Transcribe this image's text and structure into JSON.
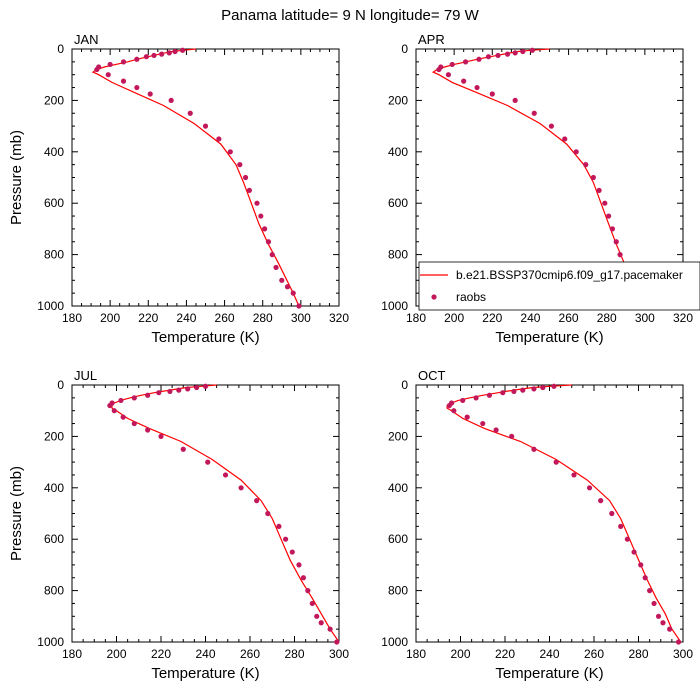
{
  "figure_title": "Panama  latitude= 9 N longitude= 79 W",
  "legend": {
    "model_label": "b.e21.BSSP370cmip6.f09_g17.pacemaker",
    "obs_label": "raobs",
    "placement": "right-middle, overlapping APR panel",
    "model_color": "#ff0000",
    "obs_color": "#c2185b"
  },
  "chart_data": [
    {
      "type": "line",
      "panel": "JAN",
      "title": "JAN",
      "xlabel": "Temperature (K)",
      "ylabel": "Pressure (mb)",
      "xlim": [
        180,
        320
      ],
      "ylim": [
        1000,
        0
      ],
      "xticks": [
        180,
        200,
        220,
        240,
        260,
        280,
        300,
        320
      ],
      "yticks": [
        0,
        200,
        400,
        600,
        800,
        1000
      ],
      "series": [
        {
          "name": "b.e21.BSSP370cmip6.f09_g17.pacemaker",
          "style": "line",
          "x": [
            245,
            238,
            232,
            226,
            220,
            214,
            209,
            203,
            197,
            193,
            191,
            194,
            201,
            213,
            228,
            244,
            258,
            266,
            270,
            274,
            278,
            283,
            288,
            292,
            296,
            299
          ],
          "y": [
            0,
            5,
            10,
            20,
            30,
            40,
            50,
            60,
            70,
            80,
            90,
            100,
            130,
            170,
            220,
            290,
            370,
            450,
            520,
            600,
            680,
            760,
            830,
            890,
            950,
            1000
          ]
        },
        {
          "name": "raobs",
          "style": "marker",
          "x": [
            238,
            234,
            231,
            227,
            223,
            219,
            214,
            207,
            200,
            194,
            193,
            199,
            207,
            214,
            221,
            232,
            242,
            250,
            257,
            263,
            268,
            271,
            273,
            277,
            279,
            281,
            283,
            285,
            287,
            290,
            293,
            296,
            299
          ],
          "y": [
            5,
            10,
            15,
            20,
            25,
            30,
            40,
            50,
            60,
            70,
            80,
            100,
            125,
            150,
            175,
            200,
            250,
            300,
            350,
            400,
            450,
            500,
            550,
            600,
            650,
            700,
            750,
            800,
            850,
            900,
            925,
            950,
            1000
          ]
        }
      ]
    },
    {
      "type": "line",
      "panel": "APR",
      "title": "APR",
      "xlabel": "Temperature (K)",
      "ylabel": "",
      "xlim": [
        180,
        320
      ],
      "ylim": [
        1000,
        0
      ],
      "xticks": [
        180,
        200,
        220,
        240,
        260,
        280,
        300,
        320
      ],
      "yticks": [
        0,
        200,
        400,
        600,
        800,
        1000
      ],
      "series": [
        {
          "name": "b.e21.BSSP370cmip6.f09_g17.pacemaker",
          "style": "line",
          "x": [
            250,
            240,
            233,
            226,
            219,
            212,
            206,
            200,
            195,
            191,
            189,
            192,
            199,
            212,
            228,
            245,
            259,
            268,
            273,
            277,
            281,
            285,
            289,
            293,
            296,
            300
          ],
          "y": [
            0,
            5,
            10,
            20,
            30,
            40,
            50,
            60,
            70,
            80,
            90,
            100,
            130,
            170,
            220,
            290,
            370,
            450,
            520,
            600,
            680,
            760,
            830,
            890,
            950,
            1000
          ]
        },
        {
          "name": "raobs",
          "style": "marker",
          "x": [
            241,
            236,
            232,
            228,
            223,
            218,
            213,
            206,
            199,
            193,
            192,
            197,
            205,
            212,
            220,
            232,
            242,
            251,
            258,
            264,
            269,
            273,
            276,
            279,
            281,
            283,
            285,
            287,
            290,
            293,
            296,
            298,
            300
          ],
          "y": [
            5,
            10,
            15,
            20,
            25,
            30,
            40,
            50,
            60,
            70,
            80,
            100,
            125,
            150,
            175,
            200,
            250,
            300,
            350,
            400,
            450,
            500,
            550,
            600,
            650,
            700,
            750,
            800,
            850,
            900,
            925,
            950,
            1000
          ]
        }
      ]
    },
    {
      "type": "line",
      "panel": "JUL",
      "title": "JUL",
      "xlabel": "Temperature (K)",
      "ylabel": "Pressure (mb)",
      "xlim": [
        180,
        300
      ],
      "ylim": [
        1000,
        0
      ],
      "xticks": [
        180,
        200,
        220,
        240,
        260,
        280,
        300
      ],
      "yticks": [
        0,
        200,
        400,
        600,
        800,
        1000
      ],
      "series": [
        {
          "name": "b.e21.BSSP370cmip6.f09_g17.pacemaker",
          "style": "line",
          "x": [
            245,
            238,
            231,
            224,
            217,
            211,
            206,
            202,
            199,
            198,
            198,
            200,
            205,
            215,
            229,
            243,
            256,
            265,
            270,
            274,
            278,
            283,
            288,
            292,
            296,
            300
          ],
          "y": [
            0,
            5,
            10,
            20,
            30,
            40,
            50,
            60,
            70,
            80,
            90,
            100,
            130,
            170,
            220,
            290,
            370,
            450,
            520,
            600,
            680,
            760,
            830,
            890,
            950,
            1000
          ]
        },
        {
          "name": "raobs",
          "style": "marker",
          "x": [
            240,
            236,
            232,
            228,
            224,
            219,
            214,
            208,
            202,
            198,
            197,
            199,
            203,
            208,
            214,
            220,
            230,
            241,
            249,
            256,
            263,
            268,
            273,
            276,
            279,
            282,
            284,
            286,
            288,
            290,
            292,
            296,
            299
          ],
          "y": [
            5,
            10,
            15,
            20,
            25,
            30,
            40,
            50,
            60,
            70,
            80,
            100,
            125,
            150,
            175,
            200,
            250,
            300,
            350,
            400,
            450,
            500,
            550,
            600,
            650,
            700,
            750,
            800,
            850,
            900,
            925,
            950,
            1000
          ]
        }
      ]
    },
    {
      "type": "line",
      "panel": "OCT",
      "title": "OCT",
      "xlabel": "Temperature (K)",
      "ylabel": "",
      "xlim": [
        180,
        300
      ],
      "ylim": [
        1000,
        0
      ],
      "xticks": [
        180,
        200,
        220,
        240,
        260,
        280,
        300
      ],
      "yticks": [
        0,
        200,
        400,
        600,
        800,
        1000
      ],
      "series": [
        {
          "name": "b.e21.BSSP370cmip6.f09_g17.pacemaker",
          "style": "line",
          "x": [
            250,
            240,
            232,
            224,
            217,
            210,
            204,
            199,
            196,
            194,
            194,
            196,
            201,
            211,
            227,
            243,
            257,
            267,
            272,
            276,
            280,
            284,
            288,
            292,
            295,
            299
          ],
          "y": [
            0,
            5,
            10,
            20,
            30,
            40,
            50,
            60,
            70,
            80,
            90,
            100,
            130,
            170,
            220,
            290,
            370,
            450,
            520,
            600,
            680,
            760,
            830,
            890,
            950,
            1000
          ]
        },
        {
          "name": "raobs",
          "style": "marker",
          "x": [
            242,
            237,
            233,
            228,
            224,
            219,
            213,
            207,
            201,
            196,
            195,
            197,
            203,
            210,
            216,
            223,
            233,
            243,
            251,
            258,
            263,
            268,
            272,
            275,
            278,
            281,
            283,
            285,
            287,
            289,
            291,
            294,
            298
          ],
          "y": [
            5,
            10,
            15,
            20,
            25,
            30,
            40,
            50,
            60,
            70,
            80,
            100,
            125,
            150,
            175,
            200,
            250,
            300,
            350,
            400,
            450,
            500,
            550,
            600,
            650,
            700,
            750,
            800,
            850,
            900,
            925,
            950,
            1000
          ]
        }
      ]
    }
  ]
}
